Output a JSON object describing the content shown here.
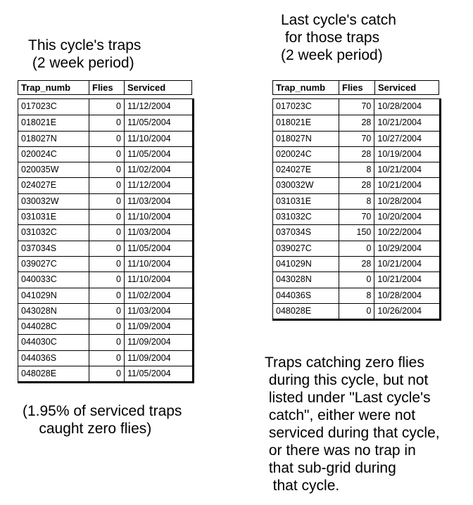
{
  "left": {
    "title": "This cycle's traps\n (2 week period)",
    "columns": [
      "Trap_numb",
      "Flies",
      "Serviced"
    ],
    "rows": [
      [
        "017023C",
        "0",
        "11/12/2004"
      ],
      [
        "018021E",
        "0",
        "11/05/2004"
      ],
      [
        "018027N",
        "0",
        "11/10/2004"
      ],
      [
        "020024C",
        "0",
        "11/05/2004"
      ],
      [
        "020035W",
        "0",
        "11/02/2004"
      ],
      [
        "024027E",
        "0",
        "11/12/2004"
      ],
      [
        "030032W",
        "0",
        "11/03/2004"
      ],
      [
        "031031E",
        "0",
        "11/10/2004"
      ],
      [
        "031032C",
        "0",
        "11/03/2004"
      ],
      [
        "037034S",
        "0",
        "11/05/2004"
      ],
      [
        "039027C",
        "0",
        "11/10/2004"
      ],
      [
        "040033C",
        "0",
        "11/10/2004"
      ],
      [
        "041029N",
        "0",
        "11/02/2004"
      ],
      [
        "043028N",
        "0",
        "11/03/2004"
      ],
      [
        "044028C",
        "0",
        "11/09/2004"
      ],
      [
        "044030C",
        "0",
        "11/09/2004"
      ],
      [
        "044036S",
        "0",
        "11/09/2004"
      ],
      [
        "048028E",
        "0",
        "11/05/2004"
      ]
    ],
    "note": "(1.95% of serviced traps\n    caught zero flies)"
  },
  "right": {
    "title": "Last cycle's catch\n for those traps\n(2 week period)",
    "columns": [
      "Trap_numb",
      "Flies",
      "Serviced"
    ],
    "rows": [
      [
        "017023C",
        "70",
        "10/28/2004"
      ],
      [
        "018021E",
        "28",
        "10/21/2004"
      ],
      [
        "018027N",
        "70",
        "10/27/2004"
      ],
      [
        "020024C",
        "28",
        "10/19/2004"
      ],
      [
        "024027E",
        "8",
        "10/21/2004"
      ],
      [
        "030032W",
        "28",
        "10/21/2004"
      ],
      [
        "031031E",
        "8",
        "10/28/2004"
      ],
      [
        "031032C",
        "70",
        "10/20/2004"
      ],
      [
        "037034S",
        "150",
        "10/22/2004"
      ],
      [
        "039027C",
        "0",
        "10/29/2004"
      ],
      [
        "041029N",
        "28",
        "10/21/2004"
      ],
      [
        "043028N",
        "0",
        "10/21/2004"
      ],
      [
        "044036S",
        "8",
        "10/28/2004"
      ],
      [
        "048028E",
        "0",
        "10/26/2004"
      ]
    ],
    "note": "Traps catching zero flies\n during this cycle, but not\n listed under \"Last cycle's\n catch\", either were not\n serviced during that cycle,\n or there was no trap in\n that sub-grid during\n  that cycle."
  }
}
